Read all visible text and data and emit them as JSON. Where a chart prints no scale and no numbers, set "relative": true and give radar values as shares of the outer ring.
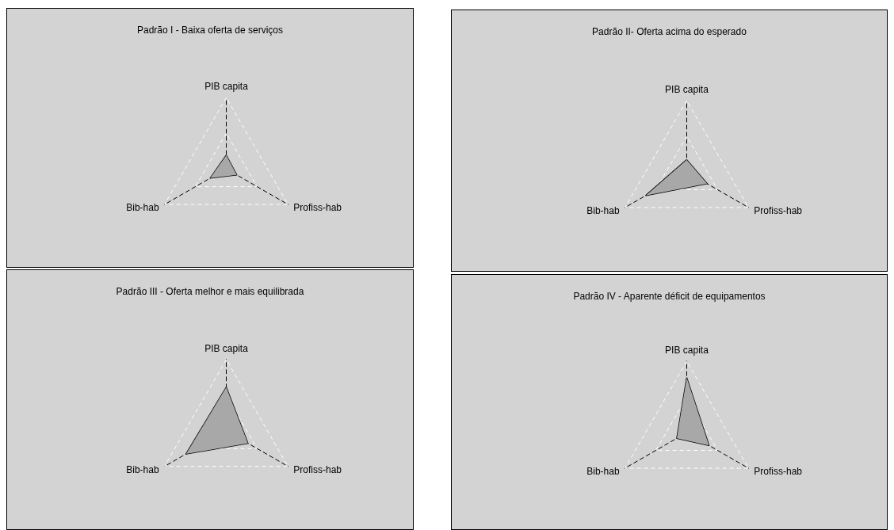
{
  "chart_data": [
    {
      "type": "radar",
      "title": "Padrão I - Baixa oferta de serviços",
      "categories": [
        "PIB capita",
        "Profiss-hab",
        "Bib-hab"
      ],
      "relative": true,
      "series": [
        {
          "color": "#000000",
          "values": [
            0.19,
            0.17,
            0.26
          ]
        }
      ]
    },
    {
      "type": "radar",
      "title": "Padrão II- Oferta acima do esperado",
      "categories": [
        "PIB capita",
        "Profiss-hab",
        "Bib-hab"
      ],
      "relative": true,
      "series": [
        {
          "color": "#000000",
          "values": [
            0.17,
            0.33,
            0.66
          ]
        }
      ]
    },
    {
      "type": "radar",
      "title": "Padrão III - Oferta melhor e mais equilibrada",
      "categories": [
        "PIB capita",
        "Profiss-hab",
        "Bib-hab"
      ],
      "relative": true,
      "series": [
        {
          "color": "#000000",
          "values": [
            0.61,
            0.35,
            0.65
          ]
        }
      ]
    },
    {
      "type": "radar",
      "title": "Padrão IV - Aparente déficit de equipamentos",
      "categories": [
        "PIB capita",
        "Profiss-hab",
        "Bib-hab"
      ],
      "relative": true,
      "series": [
        {
          "color": "#000000",
          "values": [
            0.77,
            0.36,
            0.16
          ]
        }
      ]
    }
  ]
}
